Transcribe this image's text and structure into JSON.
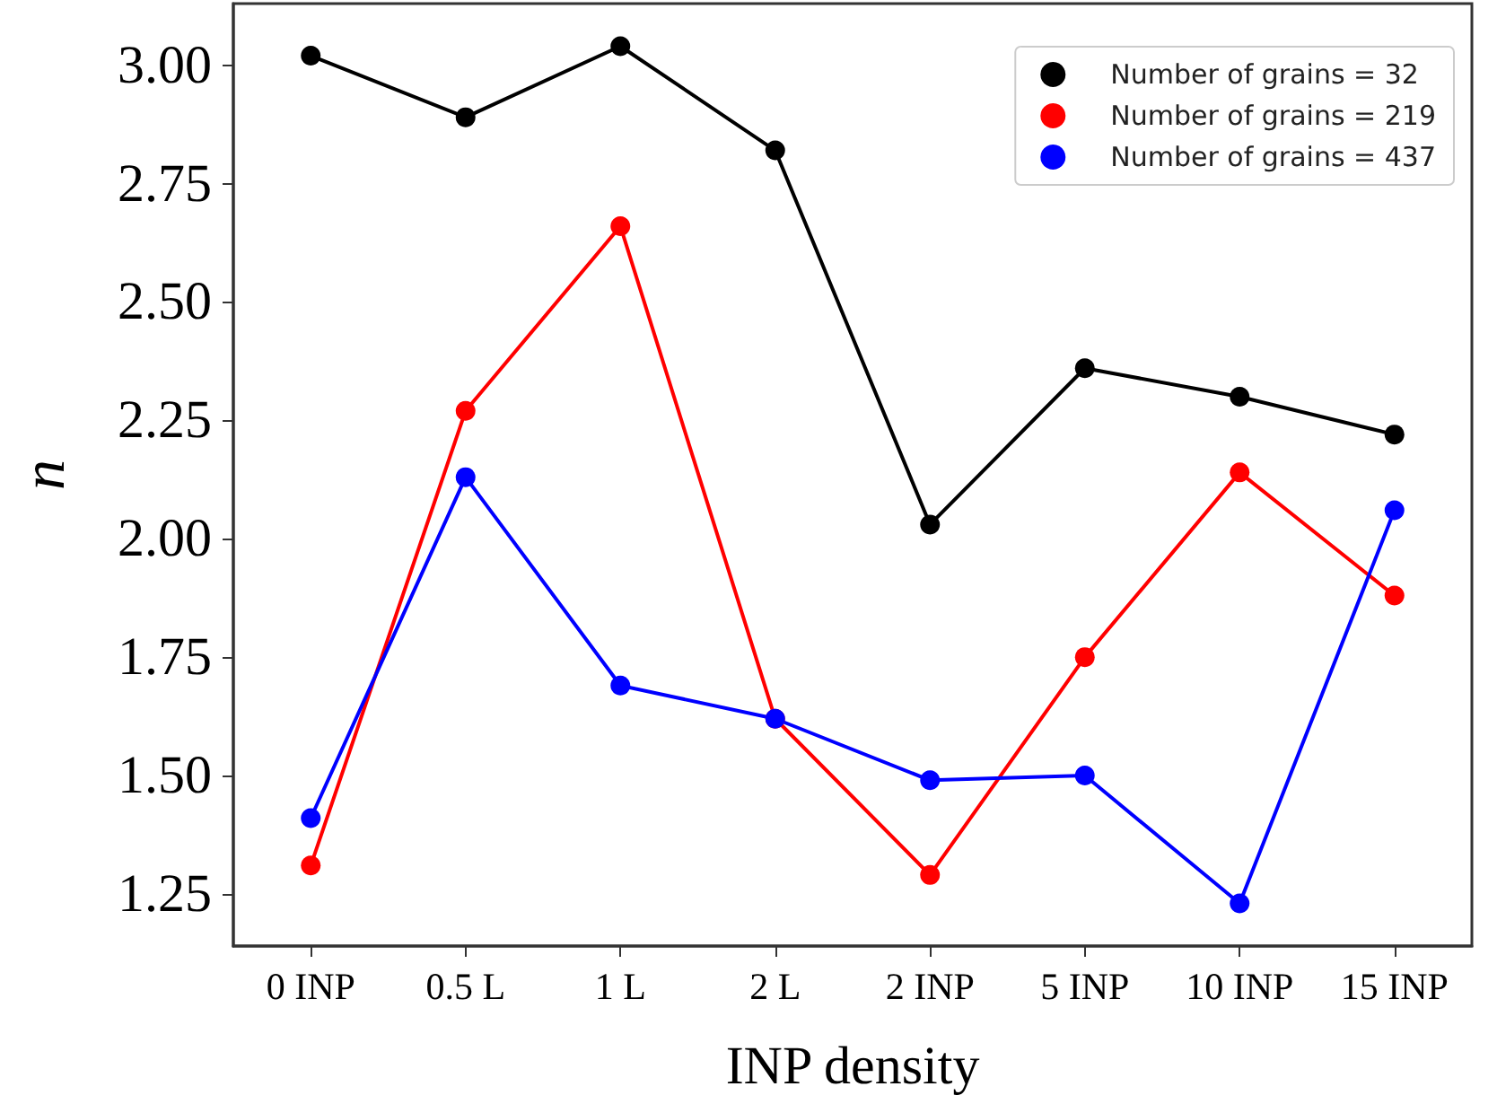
{
  "chart_data": {
    "type": "line",
    "xlabel": "INP density",
    "ylabel": "n",
    "categories": [
      "0 INP",
      "0.5 L",
      "1 L",
      "2 L",
      "2 INP",
      "5 INP",
      "10 INP",
      "15 INP"
    ],
    "series": [
      {
        "name": "Number of grains = 32",
        "color": "#000000",
        "values": [
          3.02,
          2.89,
          3.04,
          2.82,
          2.03,
          2.36,
          2.3,
          2.22
        ]
      },
      {
        "name": "Number of grains = 219",
        "color": "#ff0000",
        "values": [
          1.31,
          2.27,
          2.66,
          1.62,
          1.29,
          1.75,
          2.14,
          1.88
        ]
      },
      {
        "name": "Number of grains = 437",
        "color": "#0000ff",
        "values": [
          1.41,
          2.13,
          1.69,
          1.62,
          1.49,
          1.5,
          1.23,
          2.06
        ]
      }
    ],
    "ylim": [
      1.14,
      3.13
    ],
    "yticks": [
      1.25,
      {
        "value": 1.5,
        "label": "1.50"
      },
      1.75,
      {
        "value": 2,
        "label": "2.00"
      },
      2.25,
      {
        "value": 2.5,
        "label": "2.50"
      },
      2.75,
      {
        "value": 3,
        "label": "3.00"
      }
    ],
    "grid": false,
    "legend": "top right",
    "marker": "circle",
    "line_style": "solid"
  }
}
